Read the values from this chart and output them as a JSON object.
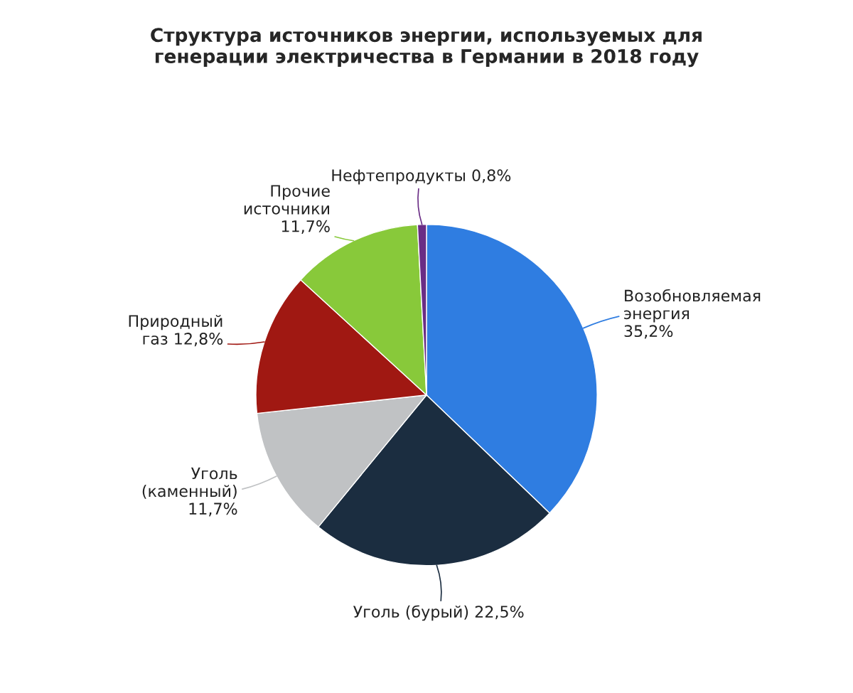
{
  "chart_data": {
    "type": "pie",
    "title": "Структура источников энергии, используемых для\nгенерации электричества в Германии в 2018 году",
    "categories": [
      "Возобновляемая\nэнергия",
      "Уголь (бурый)",
      "Уголь\n(каменный)",
      "Природный\nгаз",
      "Прочие\nисточники",
      "Нефтепродукты"
    ],
    "values": [
      35.2,
      22.5,
      11.7,
      12.8,
      11.7,
      0.8
    ],
    "value_labels": [
      "35,2%",
      "22,5%",
      "11,7%",
      "12,8%",
      "11,7%",
      "0,8%"
    ],
    "colors": [
      "#2f7de1",
      "#1b2d40",
      "#c0c2c4",
      "#a01812",
      "#88c93a",
      "#6a2d85"
    ]
  }
}
